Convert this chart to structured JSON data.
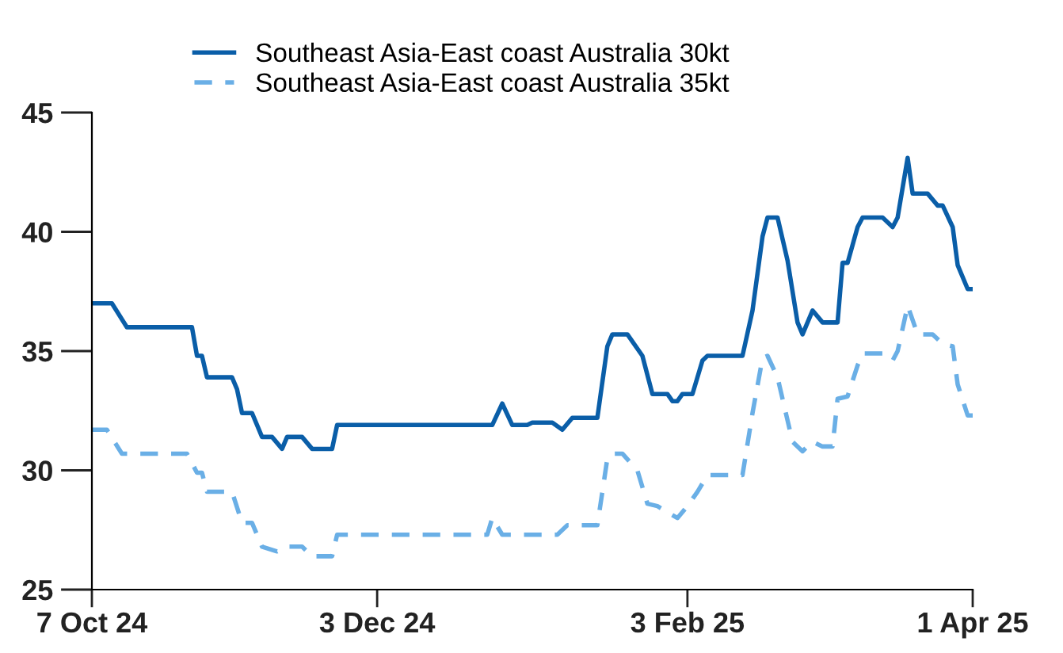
{
  "chart_data": {
    "type": "line",
    "legend": "top",
    "grid": false,
    "xlim": [
      "2024-10-07",
      "2025-04-01"
    ],
    "ylim": [
      25,
      45
    ],
    "yticks": [
      25,
      30,
      35,
      40,
      45
    ],
    "xticks": [
      {
        "value": "2024-10-07",
        "label": "7 Oct 24"
      },
      {
        "value": "2024-12-03",
        "label": "3 Dec 24"
      },
      {
        "value": "2025-02-03",
        "label": "3 Feb 25"
      },
      {
        "value": "2025-04-01",
        "label": "1 Apr 25"
      }
    ],
    "series": [
      {
        "name": "Southeast Asia-East coast Australia 30kt",
        "color": "#0a5ea8",
        "line_style": "solid",
        "x": [
          "2024-10-07",
          "2024-10-11",
          "2024-10-14",
          "2024-10-27",
          "2024-10-28",
          "2024-10-29",
          "2024-10-30",
          "2024-11-04",
          "2024-11-05",
          "2024-11-06",
          "2024-11-08",
          "2024-11-10",
          "2024-11-12",
          "2024-11-14",
          "2024-11-15",
          "2024-11-18",
          "2024-11-20",
          "2024-11-24",
          "2024-11-25",
          "2024-12-26",
          "2024-12-28",
          "2024-12-30",
          "2025-01-02",
          "2025-01-03",
          "2025-01-07",
          "2025-01-09",
          "2025-01-11",
          "2025-01-16",
          "2025-01-18",
          "2025-01-19",
          "2025-01-22",
          "2025-01-25",
          "2025-01-27",
          "2025-01-30",
          "2025-01-31",
          "2025-02-01",
          "2025-02-02",
          "2025-02-04",
          "2025-02-06",
          "2025-02-07",
          "2025-02-14",
          "2025-02-16",
          "2025-02-18",
          "2025-02-19",
          "2025-02-21",
          "2025-02-23",
          "2025-02-25",
          "2025-02-26",
          "2025-02-28",
          "2025-03-02",
          "2025-03-05",
          "2025-03-06",
          "2025-03-07",
          "2025-03-09",
          "2025-03-10",
          "2025-03-14",
          "2025-03-16",
          "2025-03-17",
          "2025-03-19",
          "2025-03-20",
          "2025-03-23",
          "2025-03-25",
          "2025-03-26",
          "2025-03-28",
          "2025-03-29",
          "2025-03-31",
          "2025-04-01"
        ],
        "values": [
          37.0,
          37.0,
          36.0,
          36.0,
          34.8,
          34.8,
          33.9,
          33.9,
          33.4,
          32.4,
          32.4,
          31.4,
          31.4,
          30.9,
          31.4,
          31.4,
          30.9,
          30.9,
          31.9,
          31.9,
          32.8,
          31.9,
          31.9,
          32.0,
          32.0,
          31.7,
          32.2,
          32.2,
          35.2,
          35.7,
          35.7,
          34.8,
          33.2,
          33.2,
          32.9,
          32.9,
          33.2,
          33.2,
          34.6,
          34.8,
          34.8,
          36.7,
          39.8,
          40.6,
          40.6,
          38.8,
          36.2,
          35.7,
          36.7,
          36.2,
          36.2,
          38.7,
          38.7,
          40.2,
          40.6,
          40.6,
          40.2,
          40.6,
          43.1,
          41.6,
          41.6,
          41.1,
          41.1,
          40.2,
          38.6,
          37.6,
          37.6
        ]
      },
      {
        "name": "Southeast Asia-East coast Australia 35kt",
        "color": "#6aafe6",
        "line_style": "dashed",
        "x": [
          "2024-10-07",
          "2024-10-10",
          "2024-10-13",
          "2024-10-26",
          "2024-10-28",
          "2024-10-29",
          "2024-10-30",
          "2024-11-04",
          "2024-11-06",
          "2024-11-08",
          "2024-11-10",
          "2024-11-13",
          "2024-11-15",
          "2024-11-18",
          "2024-11-20",
          "2024-11-24",
          "2024-11-25",
          "2024-12-25",
          "2024-12-26",
          "2024-12-28",
          "2025-01-06",
          "2025-01-08",
          "2025-01-10",
          "2025-01-16",
          "2025-01-18",
          "2025-01-19",
          "2025-01-21",
          "2025-01-24",
          "2025-01-26",
          "2025-01-28",
          "2025-02-01",
          "2025-02-03",
          "2025-02-05",
          "2025-02-07",
          "2025-02-14",
          "2025-02-16",
          "2025-02-18",
          "2025-02-19",
          "2025-02-21",
          "2025-02-24",
          "2025-02-26",
          "2025-02-28",
          "2025-03-02",
          "2025-03-04",
          "2025-03-05",
          "2025-03-07",
          "2025-03-09",
          "2025-03-10",
          "2025-03-14",
          "2025-03-16",
          "2025-03-17",
          "2025-03-19",
          "2025-03-21",
          "2025-03-24",
          "2025-03-26",
          "2025-03-28",
          "2025-03-29",
          "2025-03-31",
          "2025-04-01"
        ],
        "values": [
          31.7,
          31.7,
          30.7,
          30.7,
          29.9,
          29.9,
          29.1,
          29.1,
          27.8,
          27.8,
          26.8,
          26.6,
          26.8,
          26.8,
          26.4,
          26.4,
          27.3,
          27.3,
          28.0,
          27.3,
          27.3,
          27.3,
          27.7,
          27.7,
          30.5,
          30.7,
          30.7,
          30.0,
          28.6,
          28.5,
          28.0,
          28.5,
          29.1,
          29.8,
          29.8,
          32.4,
          34.7,
          34.8,
          33.9,
          31.2,
          30.8,
          31.2,
          31.0,
          31.0,
          33.0,
          33.1,
          34.4,
          34.9,
          34.9,
          34.6,
          35.0,
          36.9,
          35.7,
          35.7,
          35.3,
          35.2,
          33.6,
          32.3,
          32.3
        ]
      }
    ]
  }
}
